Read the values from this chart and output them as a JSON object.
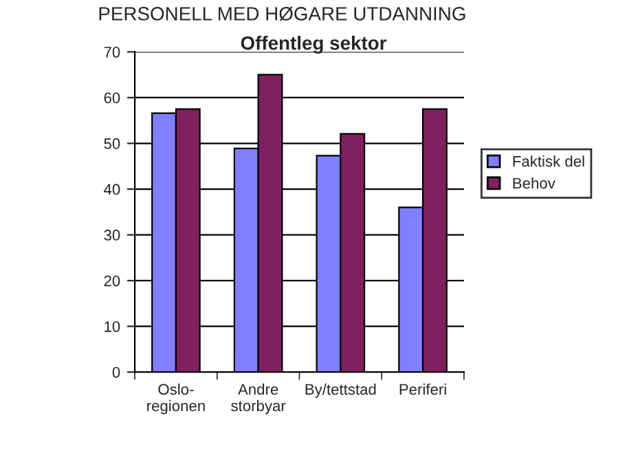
{
  "chart_data": {
    "type": "bar",
    "title": "PERSONELL MED HØGARE UTDANNING",
    "subtitle": "Offentleg sektor",
    "categories": [
      "Oslo-\nregionen",
      "Andre\nstorbyar",
      "By/tettstad",
      "Periferi"
    ],
    "series": [
      {
        "name": "Faktisk del",
        "color": "#8080ff",
        "values": [
          56.6,
          48.9,
          47.3,
          36
        ]
      },
      {
        "name": "Behov",
        "color": "#802060",
        "values": [
          57.5,
          65,
          52.1,
          57.5
        ]
      }
    ],
    "ylim": [
      0,
      70
    ],
    "yticks": [
      0,
      10,
      20,
      30,
      40,
      50,
      60,
      70
    ],
    "grid": "y",
    "legend": "right"
  }
}
